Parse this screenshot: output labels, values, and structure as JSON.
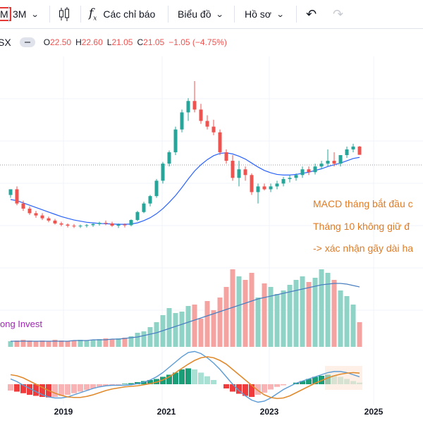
{
  "toolbar": {
    "symbol_fragment": "M",
    "interval": "3M",
    "indicators_label": "Các chỉ báo",
    "chart_label": "Biểu đồ",
    "profile_label": "Hồ sơ"
  },
  "legend": {
    "symbol_fragment": "SX",
    "o_label": "O",
    "o_value": "22.50",
    "h_label": "H",
    "h_value": "22.60",
    "l_label": "L",
    "l_value": "21.05",
    "c_label": "C",
    "c_value": "21.05",
    "change": "−1.05 (−4.75%)"
  },
  "annotations": {
    "line1": "MACD tháng bắt đầu c",
    "line2": "Tháng 10 không giữ đ",
    "line3": "-> xác nhận gãy dài ha"
  },
  "watermark": "ong Invest",
  "colors": {
    "up": "#26a69a",
    "down": "#ef5350",
    "ma_line": "#2962ff",
    "annotation": "#e07b24",
    "watermark": "#9c27b0",
    "vol_up": "#8fd3c7",
    "vol_down": "#f4a3a1"
  },
  "chart_data": {
    "type": "candlestick",
    "x_axis_labels": [
      "2019",
      "2021",
      "2023",
      "2025"
    ],
    "last_candle": {
      "open": 22.5,
      "high": 22.6,
      "low": 21.05,
      "close": 21.05,
      "change": -1.05,
      "change_pct": -4.75
    },
    "price_candles": {
      "open": [
        14.0,
        15.0,
        12.5,
        11.6,
        10.8,
        10.4,
        9.9,
        9.5,
        9.0,
        8.8,
        8.6,
        8.5,
        8.6,
        8.7,
        8.9,
        9.1,
        9.0,
        8.6,
        8.8,
        8.7,
        9.6,
        11.0,
        12.5,
        13.8,
        16.5,
        19.5,
        21.5,
        25.5,
        28.5,
        30.5,
        29.0,
        27.0,
        26.0,
        25.0,
        21.5,
        20.0,
        17.0,
        18.5,
        17.5,
        14.5,
        15.5,
        15.0,
        15.5,
        16.0,
        16.8,
        17.0,
        17.5,
        18.5,
        18.0,
        19.0,
        19.5,
        20.0,
        19.5,
        21.0,
        22.0,
        22.5
      ],
      "high": [
        15.0,
        15.5,
        13.0,
        12.0,
        11.2,
        10.8,
        10.2,
        9.8,
        9.3,
        9.0,
        8.9,
        8.8,
        8.9,
        9.0,
        9.3,
        9.5,
        9.3,
        9.0,
        9.0,
        9.7,
        11.2,
        12.8,
        14.0,
        16.8,
        19.8,
        21.8,
        26.0,
        29.0,
        31.0,
        34.0,
        30.0,
        28.0,
        27.2,
        25.5,
        22.0,
        21.0,
        20.0,
        19.0,
        17.8,
        16.0,
        16.0,
        16.0,
        16.5,
        17.2,
        17.5,
        17.8,
        19.0,
        19.0,
        19.5,
        20.0,
        22.0,
        21.5,
        21.0,
        22.5,
        23.0,
        22.6
      ],
      "low": [
        13.5,
        12.2,
        11.2,
        10.5,
        10.0,
        9.6,
        9.2,
        8.8,
        8.5,
        8.3,
        8.2,
        8.2,
        8.3,
        8.4,
        8.6,
        8.7,
        8.4,
        8.2,
        8.3,
        8.5,
        9.4,
        10.8,
        12.0,
        13.5,
        16.0,
        19.0,
        21.0,
        25.0,
        27.0,
        28.5,
        26.5,
        25.5,
        24.5,
        21.0,
        19.5,
        16.5,
        15.5,
        16.5,
        14.0,
        12.5,
        14.8,
        14.5,
        15.0,
        15.5,
        16.2,
        16.5,
        17.0,
        17.5,
        17.6,
        18.5,
        19.0,
        19.0,
        19.0,
        20.5,
        21.5,
        21.05
      ],
      "close": [
        15.0,
        12.5,
        11.6,
        10.8,
        10.4,
        9.9,
        9.5,
        9.0,
        8.8,
        8.6,
        8.5,
        8.6,
        8.7,
        8.9,
        9.1,
        9.0,
        8.6,
        8.8,
        8.7,
        9.6,
        11.0,
        12.5,
        13.8,
        16.5,
        19.5,
        21.5,
        25.5,
        28.5,
        30.5,
        29.0,
        27.0,
        26.0,
        25.0,
        21.5,
        20.0,
        17.0,
        18.5,
        17.5,
        14.5,
        15.5,
        15.0,
        15.5,
        16.0,
        16.8,
        17.0,
        17.5,
        18.5,
        18.0,
        19.0,
        19.5,
        20.0,
        19.5,
        21.0,
        22.0,
        22.5,
        21.05
      ]
    },
    "ma_series": {
      "name": "",
      "values": [
        13.2,
        13.0,
        12.6,
        12.2,
        11.8,
        11.4,
        11.0,
        10.6,
        10.2,
        9.9,
        9.6,
        9.4,
        9.2,
        9.1,
        9.0,
        8.95,
        8.9,
        8.85,
        8.85,
        8.9,
        9.1,
        9.5,
        10.0,
        10.7,
        11.6,
        12.7,
        13.9,
        15.3,
        16.8,
        18.2,
        19.3,
        20.2,
        20.9,
        21.3,
        21.4,
        21.2,
        20.8,
        20.3,
        19.6,
        18.9,
        18.3,
        17.9,
        17.6,
        17.5,
        17.5,
        17.6,
        17.8,
        18.0,
        18.3,
        18.6,
        19.0,
        19.3,
        19.6,
        20.0,
        20.4,
        20.6
      ]
    },
    "volume": {
      "values": [
        8,
        9,
        10,
        9,
        8,
        9,
        8,
        10,
        9,
        8,
        9,
        10,
        9,
        10,
        11,
        12,
        11,
        12,
        13,
        15,
        20,
        22,
        28,
        35,
        45,
        55,
        48,
        50,
        58,
        60,
        40,
        65,
        52,
        70,
        85,
        110,
        100,
        95,
        105,
        70,
        90,
        85,
        75,
        80,
        88,
        95,
        100,
        92,
        98,
        110,
        105,
        95,
        80,
        72,
        60,
        35
      ],
      "trend": [
        8,
        8,
        8,
        8,
        8,
        8,
        8,
        8,
        8,
        8,
        9,
        9,
        9,
        10,
        10,
        10,
        11,
        11,
        12,
        13,
        14,
        16,
        18,
        20,
        23,
        26,
        29,
        32,
        35,
        38,
        41,
        44,
        47,
        50,
        53,
        56,
        59,
        62,
        65,
        68,
        70,
        72,
        74,
        76,
        78,
        80,
        82,
        84,
        86,
        88,
        89,
        90,
        90,
        89,
        87,
        85
      ]
    },
    "macd": {
      "histogram": [
        -12,
        -14,
        -17,
        -20,
        -22,
        -24,
        -25,
        -24,
        -22,
        -20,
        -17,
        -14,
        -11,
        -8,
        -5,
        -3,
        -2,
        -1,
        1,
        2,
        4,
        6,
        8,
        10,
        14,
        18,
        22,
        28,
        30,
        28,
        22,
        15,
        8,
        0,
        -8,
        -14,
        -18,
        -22,
        -24,
        -20,
        -16,
        -10,
        -5,
        -2,
        0,
        3,
        6,
        10,
        14,
        16,
        18,
        17,
        14,
        10,
        6,
        3
      ],
      "macd_line": [
        10,
        5,
        -2,
        -8,
        -14,
        -20,
        -24,
        -26,
        -26,
        -24,
        -20,
        -16,
        -12,
        -8,
        -5,
        -3,
        -2,
        -2,
        -2,
        -1,
        1,
        4,
        8,
        14,
        22,
        32,
        42,
        52,
        60,
        62,
        58,
        50,
        40,
        28,
        14,
        0,
        -12,
        -22,
        -30,
        -34,
        -32,
        -26,
        -18,
        -10,
        -4,
        2,
        6,
        10,
        14,
        18,
        22,
        24,
        24,
        22,
        18,
        14
      ],
      "signal_line": [
        18,
        16,
        12,
        6,
        0,
        -6,
        -12,
        -17,
        -21,
        -24,
        -25,
        -25,
        -23,
        -20,
        -16,
        -12,
        -9,
        -7,
        -5,
        -4,
        -3,
        -1,
        1,
        4,
        8,
        14,
        22,
        30,
        38,
        45,
        50,
        52,
        50,
        45,
        38,
        28,
        18,
        8,
        -2,
        -12,
        -20,
        -25,
        -27,
        -26,
        -22,
        -16,
        -10,
        -4,
        2,
        7,
        12,
        16,
        19,
        21,
        22,
        21
      ]
    }
  }
}
